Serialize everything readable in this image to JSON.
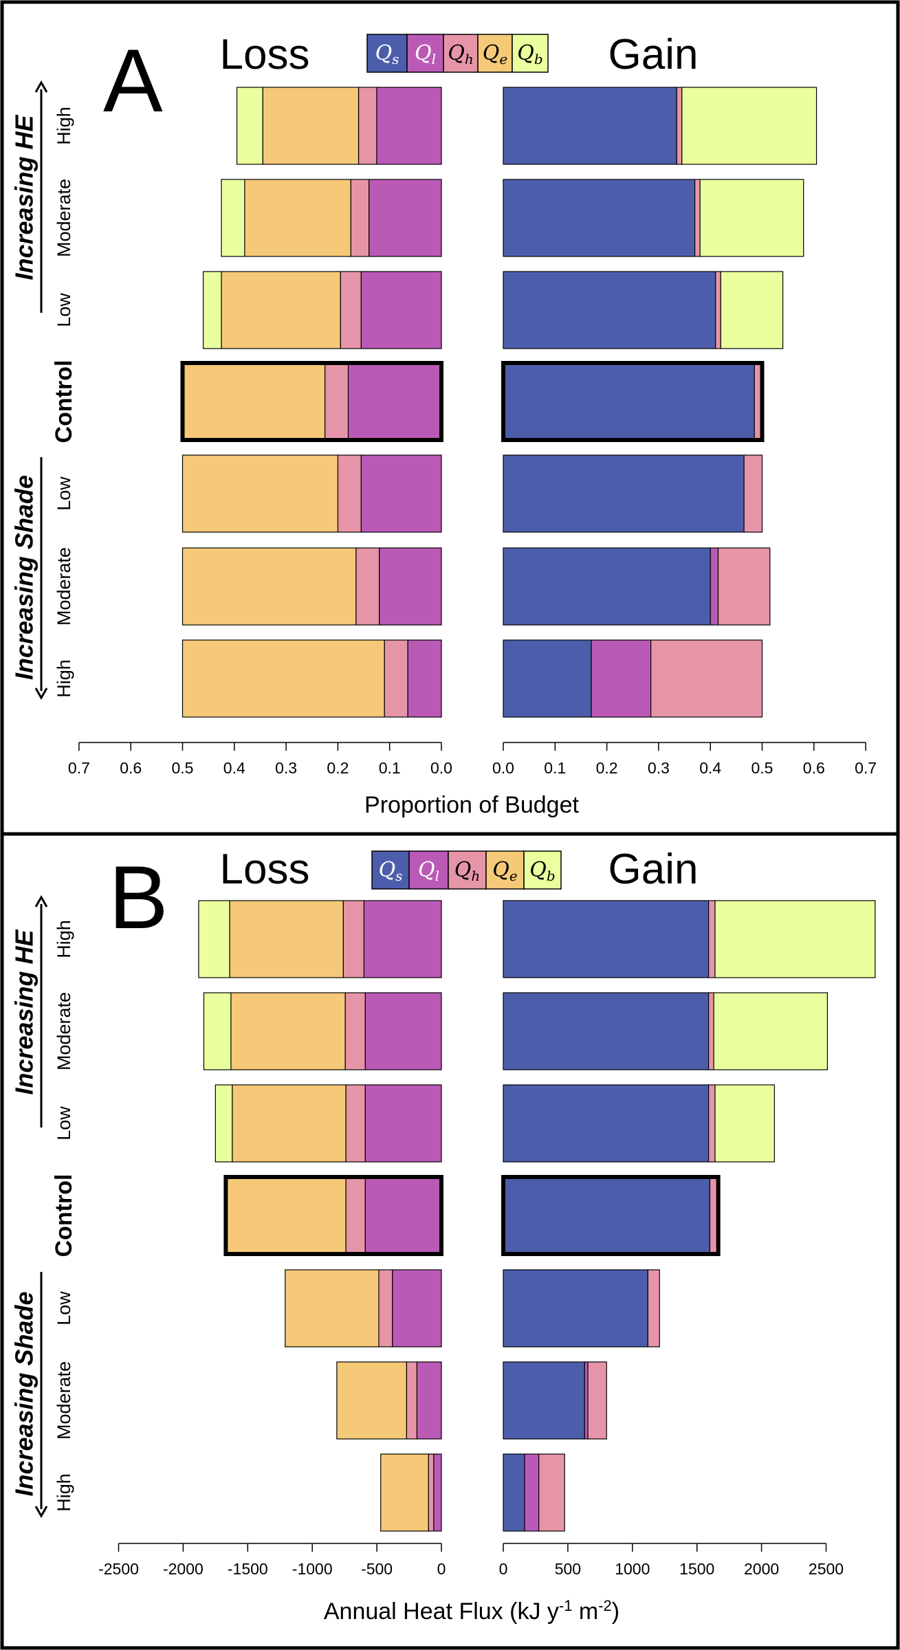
{
  "colors": {
    "Qs": "#4c5eab",
    "Ql": "#bb5ab6",
    "Qh": "#e695a8",
    "Qe": "#f5c977",
    "Qb": "#eaff9e",
    "frame": "#000000"
  },
  "legend": [
    {
      "key": "Qs",
      "base": "Q",
      "sub": "s"
    },
    {
      "key": "Ql",
      "base": "Q",
      "sub": "l"
    },
    {
      "key": "Qh",
      "base": "Q",
      "sub": "h"
    },
    {
      "key": "Qe",
      "base": "Q",
      "sub": "e"
    },
    {
      "key": "Qb",
      "base": "Q",
      "sub": "b"
    }
  ],
  "group_labels": {
    "he": "Increasing HE",
    "shade": "Increasing Shade"
  },
  "row_labels": [
    "High",
    "Moderate",
    "Low",
    "Control",
    "Low",
    "Moderate",
    "High"
  ],
  "chart_data": [
    {
      "panel_label": "A",
      "type": "bar",
      "orientation": "horizontal-stacked",
      "loss_title": "Loss",
      "gain_title": "Gain",
      "xlabel": "Proportion of Budget",
      "xlabel_sup": "",
      "xlabel_end": "",
      "xlim": [
        0,
        0.7
      ],
      "ticks": [
        "0.7",
        "0.6",
        "0.5",
        "0.4",
        "0.3",
        "0.2",
        "0.1",
        "0.0"
      ],
      "gain_ticks": [
        "0.0",
        "0.1",
        "0.2",
        "0.3",
        "0.4",
        "0.5",
        "0.6",
        "0.7"
      ],
      "tick_values": [
        0.7,
        0.6,
        0.5,
        0.4,
        0.3,
        0.2,
        0.1,
        0.0
      ],
      "gain_tick_values": [
        0.0,
        0.1,
        0.2,
        0.3,
        0.4,
        0.5,
        0.6,
        0.7
      ],
      "loss_order": [
        "Ql",
        "Qh",
        "Qe",
        "Qb"
      ],
      "gain_order": [
        "Qs",
        "Qh",
        "Qb"
      ],
      "rows": [
        {
          "loss": {
            "Ql": 0.125,
            "Qh": 0.035,
            "Qe": 0.185,
            "Qb": 0.05
          },
          "gain": {
            "Qs": 0.335,
            "Qh": 0.01,
            "Qb": 0.26
          }
        },
        {
          "loss": {
            "Ql": 0.14,
            "Qh": 0.035,
            "Qe": 0.205,
            "Qb": 0.045
          },
          "gain": {
            "Qs": 0.37,
            "Qh": 0.01,
            "Qb": 0.2
          }
        },
        {
          "loss": {
            "Ql": 0.155,
            "Qh": 0.04,
            "Qe": 0.23,
            "Qb": 0.035
          },
          "gain": {
            "Qs": 0.41,
            "Qh": 0.01,
            "Qb": 0.12
          }
        },
        {
          "loss": {
            "Ql": 0.18,
            "Qh": 0.045,
            "Qe": 0.275,
            "Qb": 0.0
          },
          "gain": {
            "Qs": 0.485,
            "Qh": 0.015,
            "Qb": 0.0
          }
        },
        {
          "loss": {
            "Ql": 0.155,
            "Qh": 0.045,
            "Qe": 0.3,
            "Qb": 0.0
          },
          "gain": {
            "Qs": 0.465,
            "Qh": 0.035,
            "Qb": 0.0
          }
        },
        {
          "loss": {
            "Ql": 0.12,
            "Qh": 0.045,
            "Qe": 0.335,
            "Qb": 0.0
          },
          "gain": {
            "Qs": 0.4,
            "Qh": 0.1,
            "Ql": 0.015,
            "Qb": 0.0
          }
        },
        {
          "loss": {
            "Ql": 0.065,
            "Qh": 0.045,
            "Qe": 0.39,
            "Qb": 0.0
          },
          "gain": {
            "Qs": 0.17,
            "Ql": 0.115,
            "Qh": 0.215,
            "Qb": 0.0
          }
        }
      ]
    },
    {
      "panel_label": "B",
      "type": "bar",
      "orientation": "horizontal-stacked",
      "loss_title": "Loss",
      "gain_title": "Gain",
      "xlabel": "Annual Heat Flux (kJ y",
      "xlabel_sup": "-1",
      "xlabel_end": " m",
      "xlabel_sup2": "-2",
      "xlabel_close": ")",
      "xlim": [
        0,
        2500
      ],
      "ticks": [
        "-2500",
        "-2000",
        "-1500",
        "-1000",
        "-500",
        "0"
      ],
      "gain_ticks": [
        "0",
        "500",
        "1000",
        "1500",
        "2000",
        "2500"
      ],
      "tick_values": [
        2500,
        2000,
        1500,
        1000,
        500,
        0
      ],
      "gain_tick_values": [
        0,
        500,
        1000,
        1500,
        2000,
        2500
      ],
      "loss_order": [
        "Ql",
        "Qh",
        "Qe",
        "Qb"
      ],
      "gain_order": [
        "Qs",
        "Qh",
        "Qb"
      ],
      "rows": [
        {
          "loss": {
            "Ql": 600,
            "Qh": 160,
            "Qe": 880,
            "Qb": 240
          },
          "gain": {
            "Qs": 1590,
            "Qh": 50,
            "Qb": 1240
          }
        },
        {
          "loss": {
            "Ql": 590,
            "Qh": 155,
            "Qe": 885,
            "Qb": 210
          },
          "gain": {
            "Qs": 1590,
            "Qh": 40,
            "Qb": 880
          }
        },
        {
          "loss": {
            "Ql": 590,
            "Qh": 150,
            "Qe": 880,
            "Qb": 130
          },
          "gain": {
            "Qs": 1590,
            "Qh": 50,
            "Qb": 460
          }
        },
        {
          "loss": {
            "Ql": 590,
            "Qh": 150,
            "Qe": 930,
            "Qb": 0
          },
          "gain": {
            "Qs": 1600,
            "Qh": 65,
            "Qb": 0
          }
        },
        {
          "loss": {
            "Ql": 380,
            "Qh": 105,
            "Qe": 725,
            "Qb": 0
          },
          "gain": {
            "Qs": 1120,
            "Qh": 90,
            "Qb": 0
          }
        },
        {
          "loss": {
            "Ql": 190,
            "Qh": 80,
            "Qe": 540,
            "Qb": 0
          },
          "gain": {
            "Qs": 630,
            "Ql": 25,
            "Qh": 145,
            "Qb": 0
          }
        },
        {
          "loss": {
            "Ql": 60,
            "Qh": 40,
            "Qe": 370,
            "Qb": 0
          },
          "gain": {
            "Qs": 165,
            "Ql": 110,
            "Qh": 200,
            "Qb": 0
          }
        }
      ]
    }
  ]
}
